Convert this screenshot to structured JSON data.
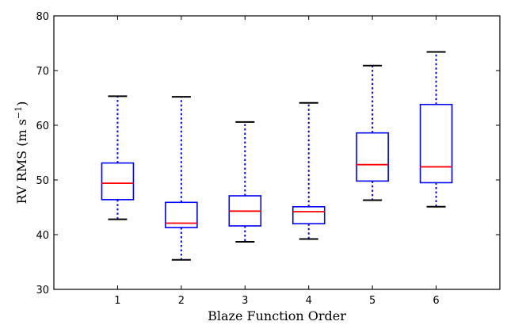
{
  "chart_data": {
    "type": "boxplot",
    "xlabel": "Blaze Function Order",
    "ylabel": "RV RMS (m s",
    "ylabel_superscript": "−1",
    "ylabel_suffix": ")",
    "ylim": [
      30,
      80
    ],
    "yticks": [
      30,
      40,
      50,
      60,
      70,
      80
    ],
    "categories": [
      "1",
      "2",
      "3",
      "4",
      "5",
      "6"
    ],
    "grid": false,
    "colors": {
      "box": "#0000ff",
      "median": "#ff0000",
      "whisker": "#0000ff",
      "cap": "#000000"
    },
    "boxes": [
      {
        "label": "1",
        "whislo": 42.8,
        "q1": 46.4,
        "med": 49.4,
        "q3": 53.1,
        "whishi": 65.3
      },
      {
        "label": "2",
        "whislo": 35.4,
        "q1": 41.3,
        "med": 42.1,
        "q3": 45.9,
        "whishi": 65.2
      },
      {
        "label": "3",
        "whislo": 38.7,
        "q1": 41.6,
        "med": 44.3,
        "q3": 47.1,
        "whishi": 60.6
      },
      {
        "label": "4",
        "whislo": 39.2,
        "q1": 42.0,
        "med": 44.2,
        "q3": 45.1,
        "whishi": 64.1
      },
      {
        "label": "5",
        "whislo": 46.3,
        "q1": 49.8,
        "med": 52.8,
        "q3": 58.6,
        "whishi": 70.9
      },
      {
        "label": "6",
        "whislo": 45.1,
        "q1": 49.5,
        "med": 52.4,
        "q3": 63.8,
        "whishi": 73.4
      }
    ]
  }
}
